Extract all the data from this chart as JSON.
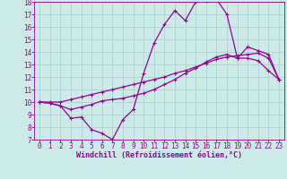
{
  "xlabel": "Windchill (Refroidissement éolien,°C)",
  "background_color": "#cceae7",
  "grid_color": "#aad4d0",
  "line_color": "#990099",
  "xlim": [
    -0.5,
    23.5
  ],
  "ylim": [
    7,
    18
  ],
  "yticks": [
    7,
    8,
    9,
    10,
    11,
    12,
    13,
    14,
    15,
    16,
    17,
    18
  ],
  "xticks": [
    0,
    1,
    2,
    3,
    4,
    5,
    6,
    7,
    8,
    9,
    10,
    11,
    12,
    13,
    14,
    15,
    16,
    17,
    18,
    19,
    20,
    21,
    22,
    23
  ],
  "line1_x": [
    0,
    1,
    2,
    3,
    4,
    5,
    6,
    7,
    8,
    9,
    10,
    11,
    12,
    13,
    14,
    15,
    16,
    17,
    18,
    19,
    20,
    21,
    22,
    23
  ],
  "line1_y": [
    10.0,
    9.9,
    9.7,
    8.7,
    8.8,
    7.8,
    7.5,
    7.0,
    8.6,
    9.4,
    12.3,
    14.7,
    16.2,
    17.3,
    16.5,
    18.0,
    18.1,
    18.2,
    17.0,
    13.5,
    14.4,
    14.1,
    13.8,
    11.8
  ],
  "line2_x": [
    0,
    1,
    2,
    3,
    4,
    5,
    6,
    7,
    8,
    9,
    10,
    11,
    12,
    13,
    14,
    15,
    16,
    17,
    18,
    19,
    20,
    21,
    22,
    23
  ],
  "line2_y": [
    10.0,
    9.9,
    9.7,
    9.4,
    9.6,
    9.8,
    10.1,
    10.2,
    10.3,
    10.5,
    10.7,
    11.0,
    11.4,
    11.8,
    12.3,
    12.7,
    13.2,
    13.6,
    13.8,
    13.5,
    13.5,
    13.3,
    12.5,
    11.8
  ],
  "line3_x": [
    0,
    1,
    2,
    3,
    4,
    5,
    6,
    7,
    8,
    9,
    10,
    11,
    12,
    13,
    14,
    15,
    16,
    17,
    18,
    19,
    20,
    21,
    22,
    23
  ],
  "line3_y": [
    10.0,
    10.0,
    10.0,
    10.2,
    10.4,
    10.6,
    10.8,
    11.0,
    11.2,
    11.4,
    11.6,
    11.8,
    12.0,
    12.3,
    12.5,
    12.8,
    13.1,
    13.4,
    13.6,
    13.7,
    13.8,
    13.9,
    13.5,
    11.8
  ],
  "tick_fontsize": 5.5,
  "xlabel_fontsize": 6.0,
  "marker_size": 3.5,
  "linewidth": 0.9
}
